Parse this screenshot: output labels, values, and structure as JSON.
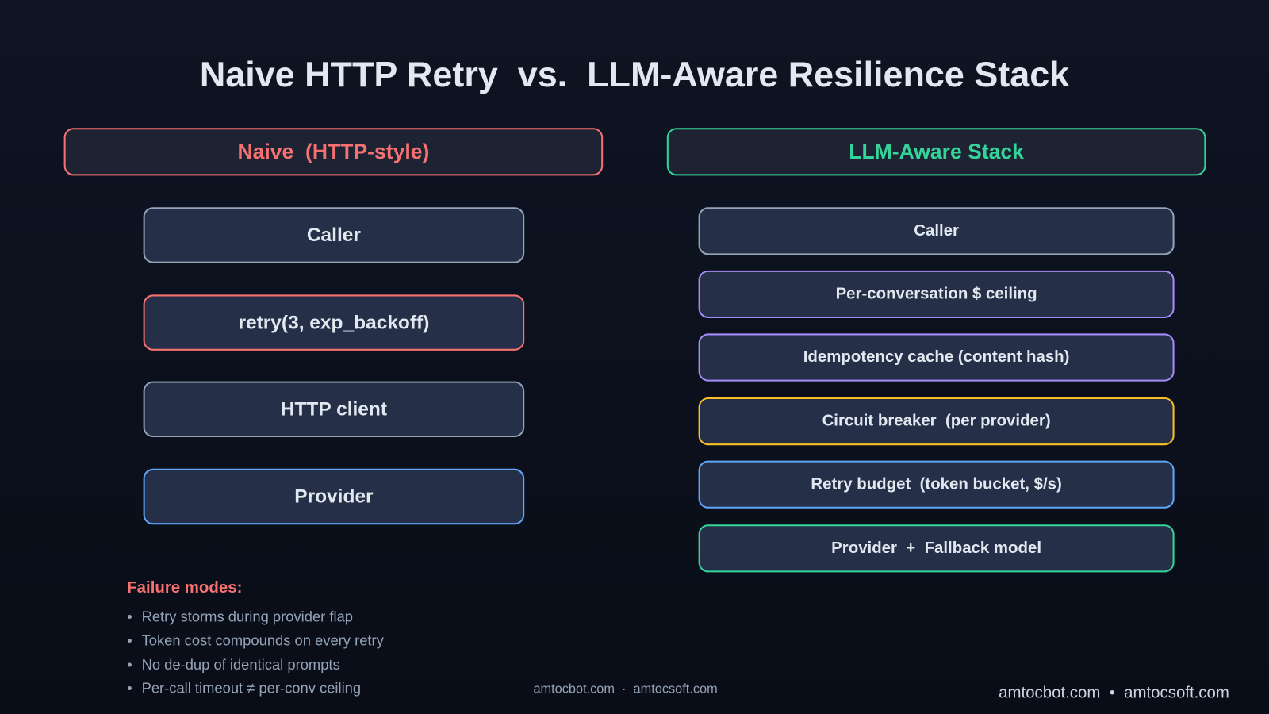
{
  "title": "Naive HTTP Retry  vs.  LLM-Aware Resilience Stack",
  "colors": {
    "red": "#f87171",
    "green": "#34d399",
    "gray": "#94a3b8",
    "blue": "#60a5fa",
    "purple": "#a78bfa",
    "yellow": "#fbbf24"
  },
  "left": {
    "header": "Naive  (HTTP-style)",
    "boxes": [
      {
        "label": "Caller",
        "border": "gray"
      },
      {
        "label": "retry(3, exp_backoff)",
        "border": "red"
      },
      {
        "label": "HTTP client",
        "border": "gray"
      },
      {
        "label": "Provider",
        "border": "blue"
      }
    ]
  },
  "right": {
    "header": "LLM-Aware Stack",
    "boxes": [
      {
        "label": "Caller",
        "border": "gray"
      },
      {
        "label": "Per-conversation $ ceiling",
        "border": "purple"
      },
      {
        "label": "Idempotency cache (content hash)",
        "border": "purple"
      },
      {
        "label": "Circuit breaker  (per provider)",
        "border": "yellow"
      },
      {
        "label": "Retry budget  (token bucket, $/s)",
        "border": "blue"
      },
      {
        "label": "Provider  +  Fallback model",
        "border": "green"
      }
    ]
  },
  "failure_modes": {
    "title": "Failure modes:",
    "items": [
      "Retry storms during provider flap",
      "Token cost compounds on every retry",
      "No de-dup of identical prompts",
      "Per-call timeout ≠ per-conv ceiling"
    ]
  },
  "footer": {
    "center": "amtocbot.com  ·  amtocsoft.com",
    "right": "amtocbot.com  •  amtocsoft.com"
  }
}
